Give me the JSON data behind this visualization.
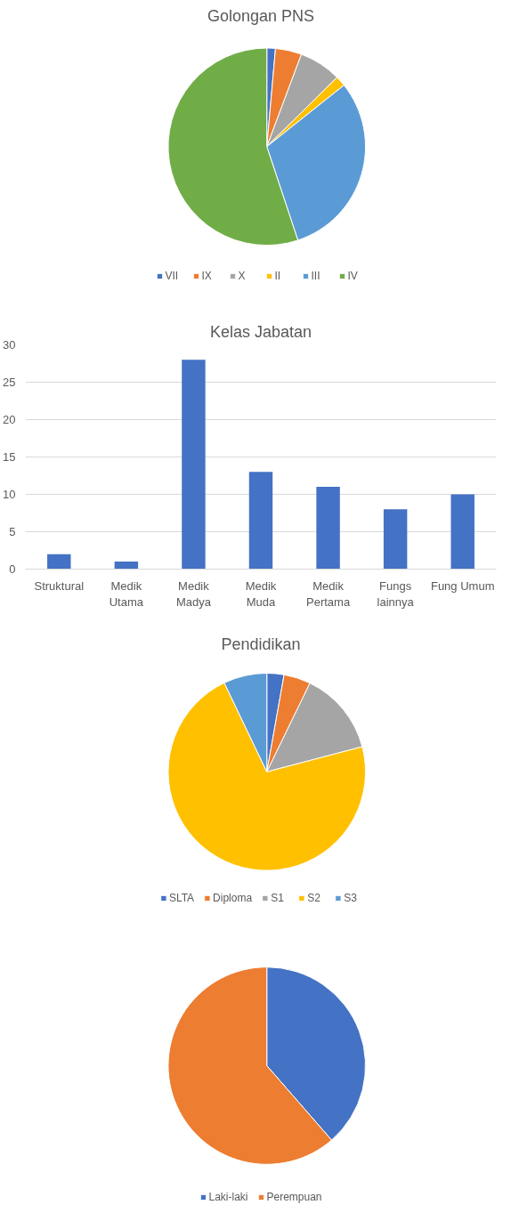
{
  "chart_data": [
    {
      "type": "pie",
      "title": "Golongan PNS",
      "categories": [
        "VII",
        "IX",
        "X",
        "II",
        "III",
        "IV"
      ],
      "values": [
        1.4,
        4.3,
        6.9,
        1.7,
        30.6,
        55.1
      ],
      "colors": [
        "#4472c4",
        "#ed7d31",
        "#a5a5a5",
        "#ffc000",
        "#5b9bd5",
        "#70ad47"
      ],
      "legend": "bottom"
    },
    {
      "type": "bar",
      "title": "Kelas Jabatan",
      "categories": [
        "Struktural",
        "Medik\nUtama",
        "Medik\nMadya",
        "Medik\nMuda",
        "Medik\nPertama",
        "Fungs\nlainnya",
        "Fung Umum"
      ],
      "values": [
        2,
        1,
        28,
        13,
        11,
        8,
        10
      ],
      "color": "#4472c4",
      "ylim": [
        0,
        30
      ],
      "yticks": [
        0,
        5,
        10,
        15,
        20,
        25,
        30
      ],
      "grid": "y"
    },
    {
      "type": "pie",
      "title": "Pendidikan",
      "categories": [
        "SLTA",
        "Diploma",
        "S1",
        "S2",
        "S3"
      ],
      "values": [
        2.8,
        4.4,
        13.7,
        72.0,
        7.1
      ],
      "colors": [
        "#4472c4",
        "#ed7d31",
        "#a5a5a5",
        "#ffc000",
        "#5b9bd5"
      ],
      "legend": "bottom"
    },
    {
      "type": "pie",
      "categories": [
        "Laki-laki",
        "Perempuan"
      ],
      "values": [
        38.6,
        61.4
      ],
      "colors": [
        "#4472c4",
        "#ed7d31"
      ],
      "legend": "bottom"
    }
  ]
}
